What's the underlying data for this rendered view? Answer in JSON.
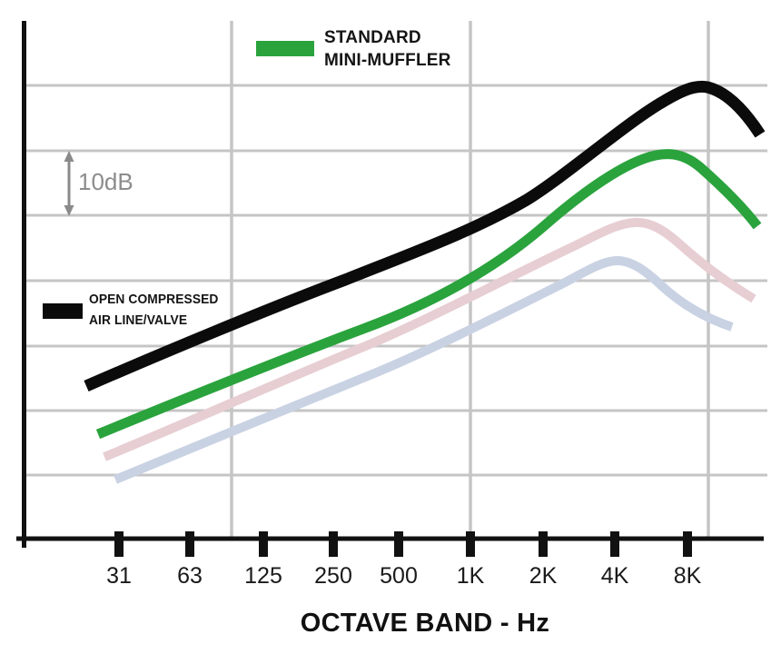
{
  "chart_data": {
    "type": "line",
    "title": "",
    "xlabel": "OCTAVE BAND - Hz",
    "ylabel": "",
    "y_axis_note": "unlabeled vertical axis; relative sound level, 10 dB per horizontal gridline division",
    "scale_marker": "10dB",
    "grid": true,
    "categories": [
      "31",
      "63",
      "125",
      "250",
      "500",
      "1K",
      "2K",
      "4K",
      "8K"
    ],
    "series": [
      {
        "name": "OPEN COMPRESSED AIR LINE/VALVE",
        "color": "#0b0b0b",
        "labeled": true,
        "relative_db": [
          26,
          31,
          35,
          39,
          44,
          48,
          54,
          62,
          69
        ]
      },
      {
        "name": "STANDARD MINI-MUFFLER",
        "color": "#2aa33d",
        "labeled": true,
        "relative_db": [
          17,
          22,
          26,
          31,
          35,
          41,
          49,
          55,
          58
        ]
      },
      {
        "name": "unlabeled series (pink)",
        "color": "#e7ced2",
        "labeled": false,
        "relative_db": [
          13,
          18,
          23,
          28,
          33,
          38,
          43,
          48,
          43
        ]
      },
      {
        "name": "unlabeled series (light blue)",
        "color": "#c9d2e3",
        "labeled": false,
        "relative_db": [
          9,
          14,
          18,
          23,
          28,
          32,
          38,
          43,
          37
        ]
      }
    ],
    "legend_position": "inline annotations"
  },
  "legend_green": {
    "line1": "STANDARD",
    "line2": "MINI-MUFFLER"
  },
  "legend_black": {
    "line1": "OPEN COMPRESSED",
    "line2": "AIR LINE/VALVE"
  },
  "scale_label": "10dB",
  "x_axis": {
    "title": "OCTAVE BAND - Hz"
  },
  "colors": {
    "grid": "#c5c5c5",
    "axis": "#111111",
    "scale_text": "#8c8c8c"
  }
}
